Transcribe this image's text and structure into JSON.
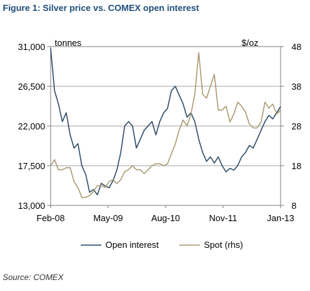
{
  "figure_title": "Figure 1: Silver price vs. COMEX open interest",
  "source_note": "Source: COMEX",
  "colors": {
    "title": "#1f4e79",
    "open_interest": "#2d4a66",
    "spot": "#ab9a72",
    "grid": "#a6a6a6",
    "axis": "#808080"
  },
  "chart_data": {
    "type": "line",
    "x_tick_labels": [
      "Feb-08",
      "May-09",
      "Aug-10",
      "Nov-11",
      "Jan-13"
    ],
    "x_range": [
      "2008-02",
      "2013-01"
    ],
    "left_axis": {
      "unit_label": "tonnes",
      "ticks": [
        "31,000",
        "26,500",
        "22,000",
        "17,500",
        "13,000"
      ],
      "ylim": [
        13000,
        31000
      ]
    },
    "right_axis": {
      "unit_label": "$/oz",
      "ticks": [
        "48",
        "38",
        "28",
        "18",
        "8"
      ],
      "ylim": [
        8,
        48
      ]
    },
    "grid": "horizontal",
    "legend_position": "bottom",
    "series": [
      {
        "name": "Open interest",
        "axis": "left",
        "color": "#2d4a66",
        "points": [
          [
            "2008-02",
            30800
          ],
          [
            "2008-03",
            26000
          ],
          [
            "2008-04",
            24500
          ],
          [
            "2008-05",
            22500
          ],
          [
            "2008-06",
            23500
          ],
          [
            "2008-07",
            21000
          ],
          [
            "2008-08",
            19500
          ],
          [
            "2008-09",
            20000
          ],
          [
            "2008-10",
            17500
          ],
          [
            "2008-11",
            16500
          ],
          [
            "2008-12",
            14500
          ],
          [
            "2009-01",
            14800
          ],
          [
            "2009-02",
            14200
          ],
          [
            "2009-03",
            15500
          ],
          [
            "2009-04",
            15200
          ],
          [
            "2009-05",
            15000
          ],
          [
            "2009-06",
            15800
          ],
          [
            "2009-07",
            17000
          ],
          [
            "2009-08",
            19000
          ],
          [
            "2009-09",
            22000
          ],
          [
            "2009-10",
            22500
          ],
          [
            "2009-11",
            22000
          ],
          [
            "2009-12",
            19500
          ],
          [
            "2010-01",
            20500
          ],
          [
            "2010-02",
            21500
          ],
          [
            "2010-03",
            22000
          ],
          [
            "2010-04",
            22500
          ],
          [
            "2010-05",
            21000
          ],
          [
            "2010-06",
            22500
          ],
          [
            "2010-07",
            23500
          ],
          [
            "2010-08",
            24000
          ],
          [
            "2010-09",
            26000
          ],
          [
            "2010-10",
            26500
          ],
          [
            "2010-11",
            25500
          ],
          [
            "2010-12",
            24500
          ],
          [
            "2011-01",
            23000
          ],
          [
            "2011-02",
            23500
          ],
          [
            "2011-03",
            22500
          ],
          [
            "2011-04",
            20500
          ],
          [
            "2011-05",
            19000
          ],
          [
            "2011-06",
            18000
          ],
          [
            "2011-07",
            18500
          ],
          [
            "2011-08",
            17800
          ],
          [
            "2011-09",
            18500
          ],
          [
            "2011-10",
            17500
          ],
          [
            "2011-11",
            16800
          ],
          [
            "2011-12",
            17200
          ],
          [
            "2012-01",
            17000
          ],
          [
            "2012-02",
            17500
          ],
          [
            "2012-03",
            18500
          ],
          [
            "2012-04",
            19000
          ],
          [
            "2012-05",
            19800
          ],
          [
            "2012-06",
            19500
          ],
          [
            "2012-07",
            20500
          ],
          [
            "2012-08",
            21500
          ],
          [
            "2012-09",
            22500
          ],
          [
            "2012-10",
            23200
          ],
          [
            "2012-11",
            22800
          ],
          [
            "2012-12",
            23500
          ],
          [
            "2013-01",
            24200
          ]
        ]
      },
      {
        "name": "Spot (rhs)",
        "axis": "right",
        "color": "#ab9a72",
        "points": [
          [
            "2008-02",
            18
          ],
          [
            "2008-03",
            19.5
          ],
          [
            "2008-04",
            17
          ],
          [
            "2008-05",
            17
          ],
          [
            "2008-06",
            17.5
          ],
          [
            "2008-07",
            17.5
          ],
          [
            "2008-08",
            14
          ],
          [
            "2008-09",
            12.5
          ],
          [
            "2008-10",
            10
          ],
          [
            "2008-11",
            10
          ],
          [
            "2008-12",
            10.5
          ],
          [
            "2009-01",
            11.5
          ],
          [
            "2009-02",
            13
          ],
          [
            "2009-03",
            13
          ],
          [
            "2009-04",
            12.5
          ],
          [
            "2009-05",
            14
          ],
          [
            "2009-06",
            14.5
          ],
          [
            "2009-07",
            13.5
          ],
          [
            "2009-08",
            14.5
          ],
          [
            "2009-09",
            16.5
          ],
          [
            "2009-10",
            17
          ],
          [
            "2009-11",
            18
          ],
          [
            "2009-12",
            17
          ],
          [
            "2010-01",
            17
          ],
          [
            "2010-02",
            16
          ],
          [
            "2010-03",
            17
          ],
          [
            "2010-04",
            18
          ],
          [
            "2010-05",
            18.5
          ],
          [
            "2010-06",
            18.5
          ],
          [
            "2010-07",
            18
          ],
          [
            "2010-08",
            18.5
          ],
          [
            "2010-09",
            21
          ],
          [
            "2010-10",
            23.5
          ],
          [
            "2010-11",
            27
          ],
          [
            "2010-12",
            29.5
          ],
          [
            "2011-01",
            28
          ],
          [
            "2011-02",
            31
          ],
          [
            "2011-03",
            36
          ],
          [
            "2011-04",
            46.5
          ],
          [
            "2011-05",
            36
          ],
          [
            "2011-06",
            35
          ],
          [
            "2011-07",
            38
          ],
          [
            "2011-08",
            41
          ],
          [
            "2011-09",
            32
          ],
          [
            "2011-10",
            32
          ],
          [
            "2011-11",
            33
          ],
          [
            "2011-12",
            29
          ],
          [
            "2012-01",
            31
          ],
          [
            "2012-02",
            34
          ],
          [
            "2012-03",
            33
          ],
          [
            "2012-04",
            31.5
          ],
          [
            "2012-05",
            28.5
          ],
          [
            "2012-06",
            27.5
          ],
          [
            "2012-07",
            27.5
          ],
          [
            "2012-08",
            29
          ],
          [
            "2012-09",
            34
          ],
          [
            "2012-10",
            32.5
          ],
          [
            "2012-11",
            33.5
          ],
          [
            "2012-12",
            31
          ],
          [
            "2013-01",
            32
          ]
        ]
      }
    ]
  }
}
